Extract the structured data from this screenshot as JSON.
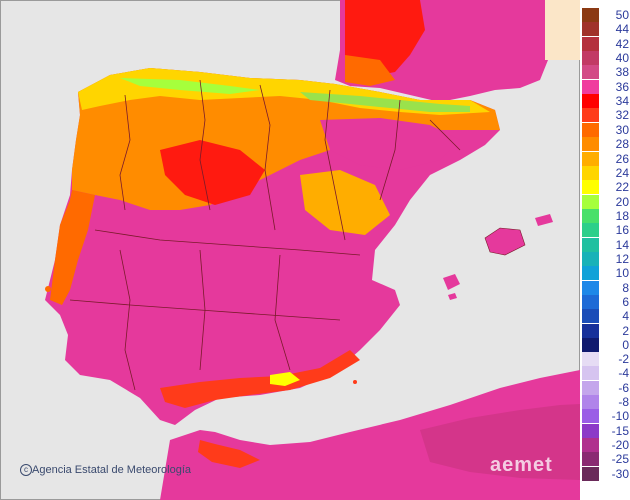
{
  "map": {
    "title": "",
    "colors": {
      "sea": "#e6e6e6",
      "land_default": "#e5399c",
      "land_hot": "#d5358c",
      "border": "#7a1a2a"
    }
  },
  "legend": {
    "positive": [
      {
        "label": "50",
        "color": "#8b3a14"
      },
      {
        "label": "44",
        "color": "#a0322b"
      },
      {
        "label": "42",
        "color": "#b4303e"
      },
      {
        "label": "40",
        "color": "#c23a65"
      },
      {
        "label": "38",
        "color": "#d34a86"
      },
      {
        "label": "36",
        "color": "#f03c9e"
      },
      {
        "label": "34",
        "color": "#ff0000"
      },
      {
        "label": "32",
        "color": "#ff3b1a"
      },
      {
        "label": "30",
        "color": "#ff6a00"
      },
      {
        "label": "28",
        "color": "#ff8c00"
      },
      {
        "label": "26",
        "color": "#ffad00"
      },
      {
        "label": "24",
        "color": "#ffd500"
      },
      {
        "label": "22",
        "color": "#ffff00"
      },
      {
        "label": "20",
        "color": "#a6ff3c"
      },
      {
        "label": "18",
        "color": "#48e06a"
      },
      {
        "label": "16",
        "color": "#2ccf8a"
      },
      {
        "label": "14",
        "color": "#20c0a0"
      },
      {
        "label": "12",
        "color": "#18b2b8"
      },
      {
        "label": "10",
        "color": "#10a2d8"
      },
      {
        "label": "8",
        "color": "#1e88e8"
      },
      {
        "label": "6",
        "color": "#1e6ad6"
      },
      {
        "label": "4",
        "color": "#1b4db8"
      },
      {
        "label": "2",
        "color": "#17309a"
      },
      {
        "label": "0",
        "color": "#101a6e"
      }
    ],
    "negative": [
      {
        "label": "-2",
        "color": "#e6dcf4"
      },
      {
        "label": "-4",
        "color": "#d6c4f0"
      },
      {
        "label": "-6",
        "color": "#c4a6ec"
      },
      {
        "label": "-8",
        "color": "#b084ea"
      },
      {
        "label": "-10",
        "color": "#9a5ee6"
      },
      {
        "label": "-15",
        "color": "#8c3ac8"
      },
      {
        "label": "-20",
        "color": "#b0308e"
      },
      {
        "label": "-25",
        "color": "#8a2a72"
      },
      {
        "label": "-30",
        "color": "#6a2a5a"
      }
    ]
  },
  "footer": {
    "copyright_symbol": "c",
    "credit": "Agencia Estatal de Meteorología",
    "brand": "aemet"
  }
}
